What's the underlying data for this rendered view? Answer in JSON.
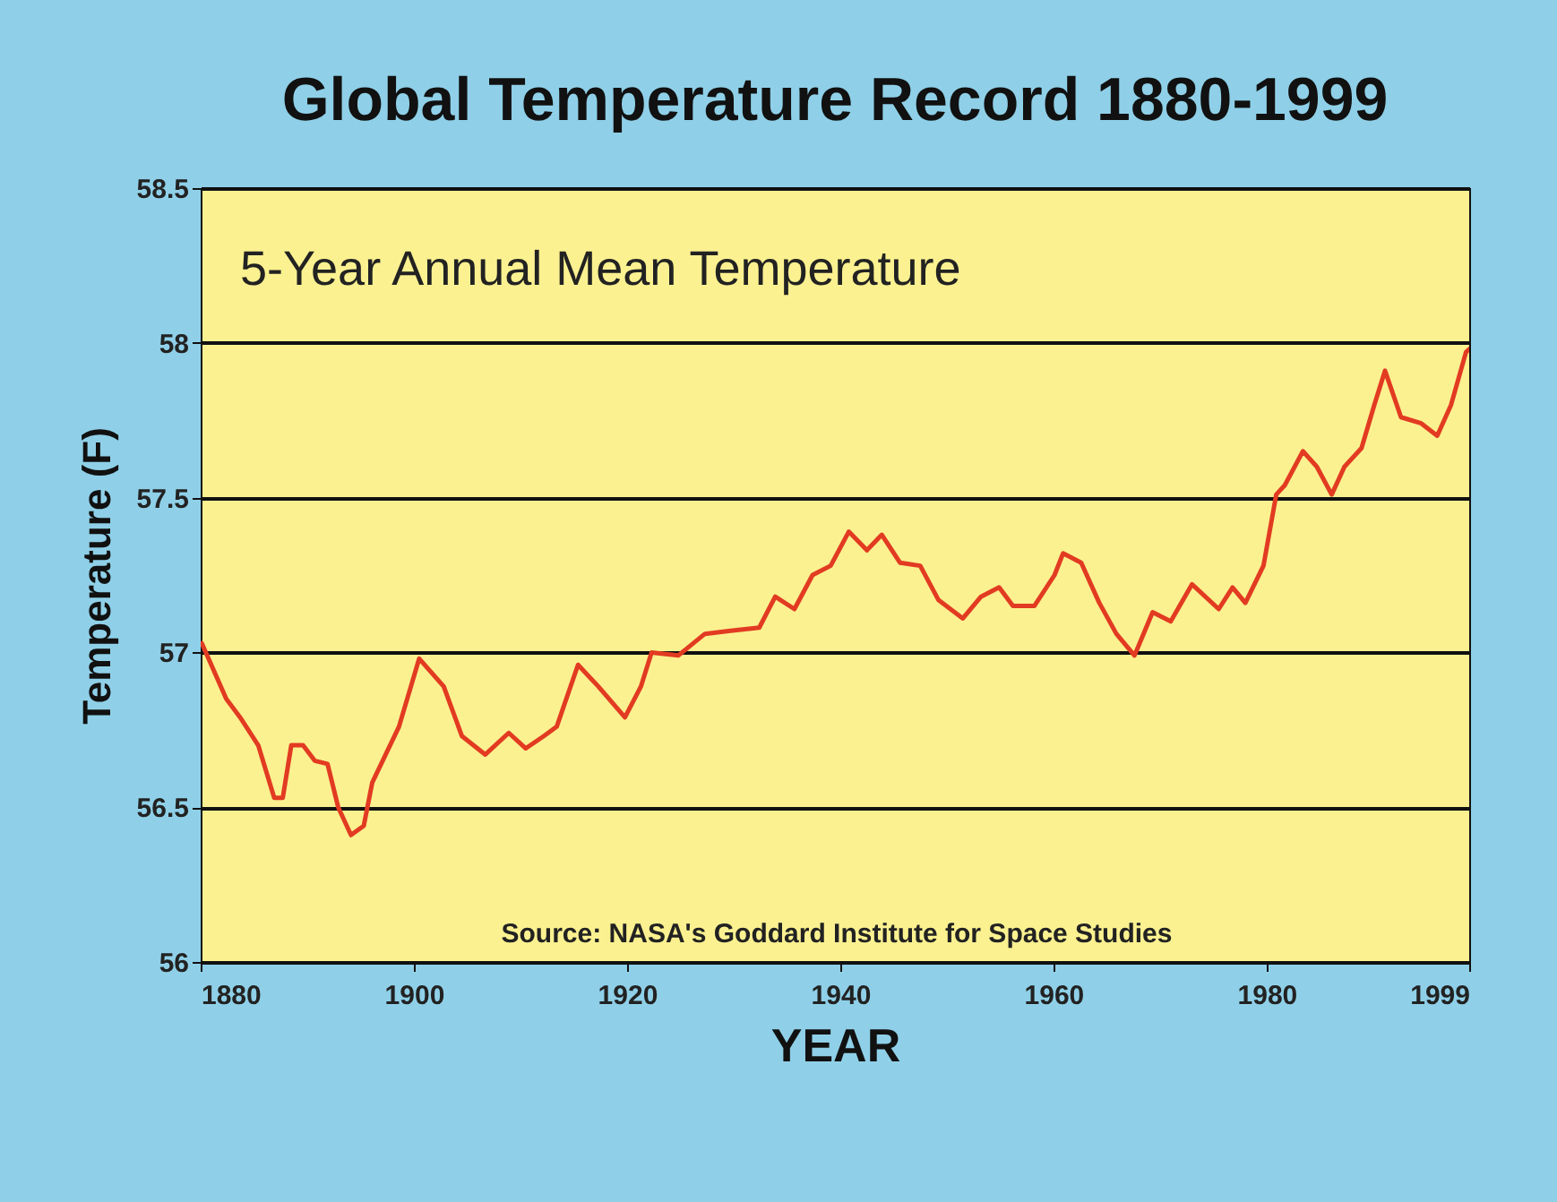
{
  "chart_data": {
    "type": "line",
    "title": "Global Temperature Record 1880-1999",
    "xlabel": "YEAR",
    "ylabel": "Temperature (F)",
    "annotations": [
      "5-Year Annual Mean Temperature",
      "Source: NASA's Goddard Institute for Space Studies"
    ],
    "x": [
      1880.1,
      1882.4,
      1883.7,
      1885.4,
      1886.9,
      1887.7,
      1888.5,
      1889.6,
      1890.7,
      1891.9,
      1892.9,
      1894.1,
      1895.3,
      1896.1,
      1898.6,
      1900.5,
      1902.8,
      1904.5,
      1906.7,
      1908.9,
      1910.5,
      1912.2,
      1913.4,
      1915.4,
      1917.3,
      1919.8,
      1921.3,
      1922.3,
      1924.8,
      1927.3,
      1929.7,
      1932.4,
      1933.9,
      1935.7,
      1937.4,
      1939.1,
      1940.8,
      1942.5,
      1943.9,
      1945.6,
      1947.5,
      1949.2,
      1951.5,
      1953.2,
      1954.9,
      1956.2,
      1958.2,
      1960.1,
      1960.9,
      1962.6,
      1964.3,
      1965.9,
      1967.6,
      1969.3,
      1971.0,
      1973.0,
      1975.5,
      1976.8,
      1978.0,
      1979.7,
      1980.9,
      1981.7,
      1983.4,
      1984.7,
      1986.1,
      1987.3,
      1988.9,
      1990.1,
      1991.1,
      1992.6,
      1994.5,
      1996.0,
      1997.3,
      1998.7,
      1999
    ],
    "series": [
      {
        "color": "#e23b22",
        "values": [
          57.03,
          56.85,
          56.79,
          56.7,
          56.53,
          56.53,
          56.7,
          56.7,
          56.65,
          56.64,
          56.5,
          56.41,
          56.44,
          56.58,
          56.76,
          56.98,
          56.89,
          56.73,
          56.67,
          56.74,
          56.69,
          56.73,
          56.76,
          56.96,
          56.89,
          56.79,
          56.89,
          57.0,
          56.99,
          57.06,
          57.07,
          57.08,
          57.18,
          57.14,
          57.25,
          57.28,
          57.39,
          57.33,
          57.38,
          57.29,
          57.28,
          57.17,
          57.11,
          57.18,
          57.21,
          57.15,
          57.15,
          57.25,
          57.32,
          57.29,
          57.16,
          57.06,
          56.99,
          57.13,
          57.1,
          57.22,
          57.14,
          57.21,
          57.16,
          57.28,
          57.51,
          57.54,
          57.65,
          57.6,
          57.51,
          57.6,
          57.66,
          57.8,
          57.91,
          57.76,
          57.74,
          57.7,
          57.8,
          57.97,
          57.98
        ]
      }
    ],
    "xlim": [
      1880,
      1999
    ],
    "xticks": [
      1880,
      1900,
      1920,
      1940,
      1960,
      1980,
      1999
    ],
    "ylim": [
      56,
      58.5
    ],
    "yticks": [
      56,
      56.5,
      57,
      57.5,
      58,
      58.5
    ],
    "grid": "y",
    "legend": false,
    "line_style": "solid",
    "marker": "none"
  }
}
